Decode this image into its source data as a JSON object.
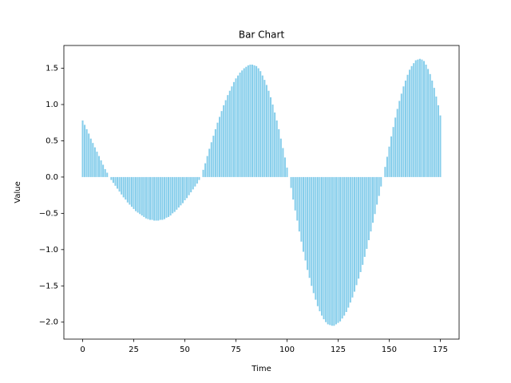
{
  "chart_data": {
    "type": "bar",
    "title": "Bar Chart",
    "x_label": "Time",
    "y_label": "Value",
    "color": "#87ceeb",
    "x": [
      0,
      1,
      2,
      3,
      4,
      5,
      6,
      7,
      8,
      9,
      10,
      11,
      12,
      13,
      14,
      15,
      16,
      17,
      18,
      19,
      20,
      21,
      22,
      23,
      24,
      25,
      26,
      27,
      28,
      29,
      30,
      31,
      32,
      33,
      34,
      35,
      36,
      37,
      38,
      39,
      40,
      41,
      42,
      43,
      44,
      45,
      46,
      47,
      48,
      49,
      50,
      51,
      52,
      53,
      54,
      55,
      56,
      57,
      58,
      59,
      60,
      61,
      62,
      63,
      64,
      65,
      66,
      67,
      68,
      69,
      70,
      71,
      72,
      73,
      74,
      75,
      76,
      77,
      78,
      79,
      80,
      81,
      82,
      83,
      84,
      85,
      86,
      87,
      88,
      89,
      90,
      91,
      92,
      93,
      94,
      95,
      96,
      97,
      98,
      99,
      100,
      101,
      102,
      103,
      104,
      105,
      106,
      107,
      108,
      109,
      110,
      111,
      112,
      113,
      114,
      115,
      116,
      117,
      118,
      119,
      120,
      121,
      122,
      123,
      124,
      125,
      126,
      127,
      128,
      129,
      130,
      131,
      132,
      133,
      134,
      135,
      136,
      137,
      138,
      139,
      140,
      141,
      142,
      143,
      144,
      145,
      146,
      147,
      148,
      149,
      150,
      151,
      152,
      153,
      154,
      155,
      156,
      157,
      158,
      159,
      160,
      161,
      162,
      163,
      164,
      165,
      166,
      167,
      168,
      169,
      170,
      171,
      172,
      173,
      174,
      175
    ],
    "values": [
      0.78,
      0.72,
      0.66,
      0.6,
      0.53,
      0.47,
      0.41,
      0.35,
      0.29,
      0.23,
      0.17,
      0.11,
      0.06,
      0.0,
      -0.04,
      -0.08,
      -0.12,
      -0.16,
      -0.2,
      -0.24,
      -0.28,
      -0.31,
      -0.35,
      -0.38,
      -0.41,
      -0.44,
      -0.47,
      -0.49,
      -0.51,
      -0.53,
      -0.55,
      -0.57,
      -0.58,
      -0.59,
      -0.59,
      -0.6,
      -0.6,
      -0.6,
      -0.59,
      -0.59,
      -0.58,
      -0.56,
      -0.55,
      -0.53,
      -0.5,
      -0.48,
      -0.45,
      -0.42,
      -0.39,
      -0.36,
      -0.32,
      -0.29,
      -0.25,
      -0.21,
      -0.17,
      -0.13,
      -0.09,
      -0.04,
      0.0,
      0.1,
      0.19,
      0.29,
      0.39,
      0.48,
      0.57,
      0.66,
      0.75,
      0.83,
      0.91,
      0.99,
      1.06,
      1.13,
      1.19,
      1.25,
      1.31,
      1.36,
      1.4,
      1.44,
      1.47,
      1.5,
      1.52,
      1.54,
      1.55,
      1.55,
      1.54,
      1.53,
      1.5,
      1.46,
      1.4,
      1.34,
      1.27,
      1.19,
      1.1,
      1.0,
      0.89,
      0.78,
      0.66,
      0.53,
      0.4,
      0.27,
      0.13,
      0.0,
      -0.15,
      -0.31,
      -0.46,
      -0.6,
      -0.75,
      -0.89,
      -1.03,
      -1.15,
      -1.28,
      -1.39,
      -1.5,
      -1.6,
      -1.69,
      -1.78,
      -1.85,
      -1.91,
      -1.96,
      -2.0,
      -2.03,
      -2.04,
      -2.05,
      -2.05,
      -2.03,
      -2.01,
      -1.99,
      -1.95,
      -1.91,
      -1.86,
      -1.8,
      -1.73,
      -1.66,
      -1.58,
      -1.49,
      -1.4,
      -1.31,
      -1.21,
      -1.1,
      -0.99,
      -0.87,
      -0.75,
      -0.63,
      -0.51,
      -0.38,
      -0.26,
      -0.13,
      0.0,
      0.14,
      0.28,
      0.42,
      0.56,
      0.69,
      0.82,
      0.94,
      1.05,
      1.15,
      1.25,
      1.33,
      1.41,
      1.48,
      1.53,
      1.57,
      1.61,
      1.62,
      1.63,
      1.62,
      1.6,
      1.55,
      1.49,
      1.42,
      1.33,
      1.23,
      1.11,
      0.99,
      0.85
    ],
    "bar_width": 0.8,
    "xlim": [
      -9.19,
      184.19
    ],
    "xticks": [
      0,
      25,
      50,
      75,
      100,
      125,
      150,
      175
    ],
    "ylim": [
      -2.234,
      1.814
    ],
    "yticks": [
      {
        "value": -2,
        "label": "−2.0"
      },
      {
        "value": -1.5,
        "label": "−1.5"
      },
      {
        "value": -1,
        "label": "−1.0"
      },
      {
        "value": -0.5,
        "label": "−0.5"
      },
      {
        "value": 0,
        "label": "0.0"
      },
      {
        "value": 0.5,
        "label": "0.5"
      },
      {
        "value": 1,
        "label": "1.0"
      },
      {
        "value": 1.5,
        "label": "1.5"
      }
    ]
  }
}
